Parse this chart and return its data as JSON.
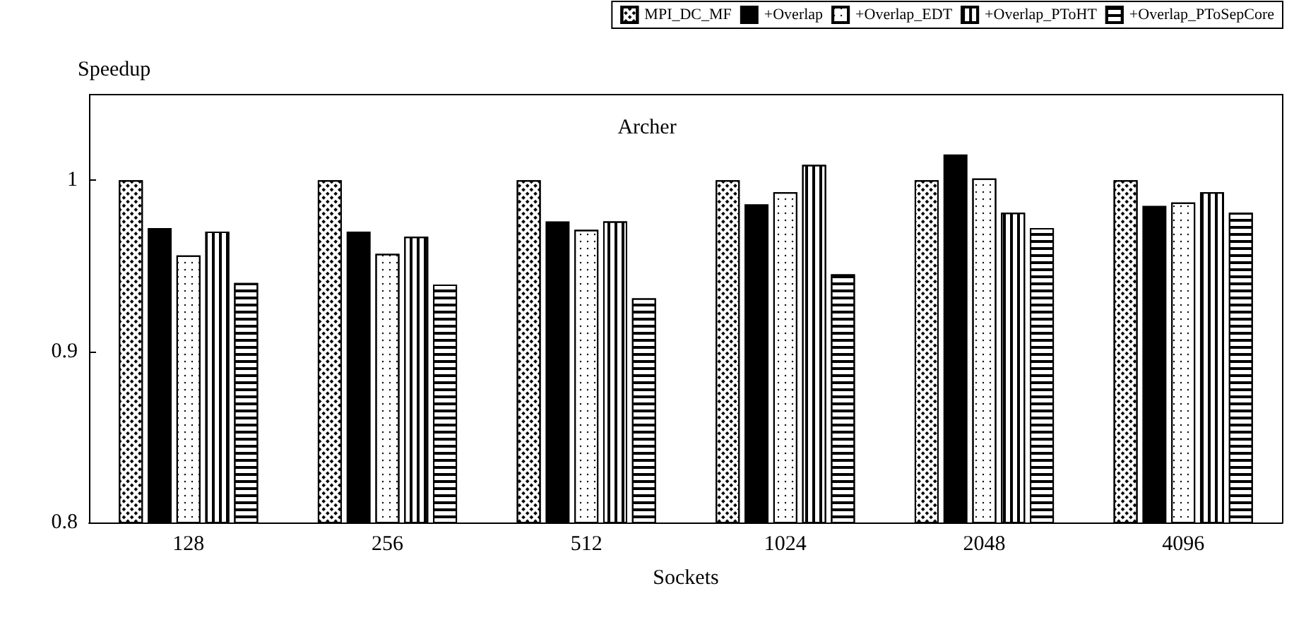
{
  "chart_data": {
    "type": "bar",
    "title": "Archer",
    "xlabel": "Sockets",
    "ylabel": "Speedup",
    "categories": [
      "128",
      "256",
      "512",
      "1024",
      "2048",
      "4096"
    ],
    "series": [
      {
        "name": "MPI_DC_MF",
        "color": "#000000",
        "values": [
          1.0,
          1.0,
          1.0,
          1.0,
          1.0,
          1.0
        ]
      },
      {
        "name": "+Overlap",
        "color": "#000000",
        "values": [
          0.972,
          0.97,
          0.976,
          0.986,
          1.015,
          0.985
        ]
      },
      {
        "name": "+Overlap_EDT",
        "color": "#000000",
        "values": [
          0.956,
          0.957,
          0.971,
          0.993,
          1.001,
          0.987
        ]
      },
      {
        "name": "+Overlap_PToHT",
        "color": "#000000",
        "values": [
          0.97,
          0.967,
          0.976,
          1.009,
          0.981,
          0.993
        ]
      },
      {
        "name": "+Overlap_PToSepCore",
        "color": "#000000",
        "values": [
          0.94,
          0.939,
          0.931,
          0.945,
          0.972,
          0.981
        ]
      }
    ],
    "ylim": [
      0.8,
      1.05
    ],
    "yticks": [
      0.8,
      0.9,
      1
    ],
    "grid": false,
    "legend": "top right"
  }
}
